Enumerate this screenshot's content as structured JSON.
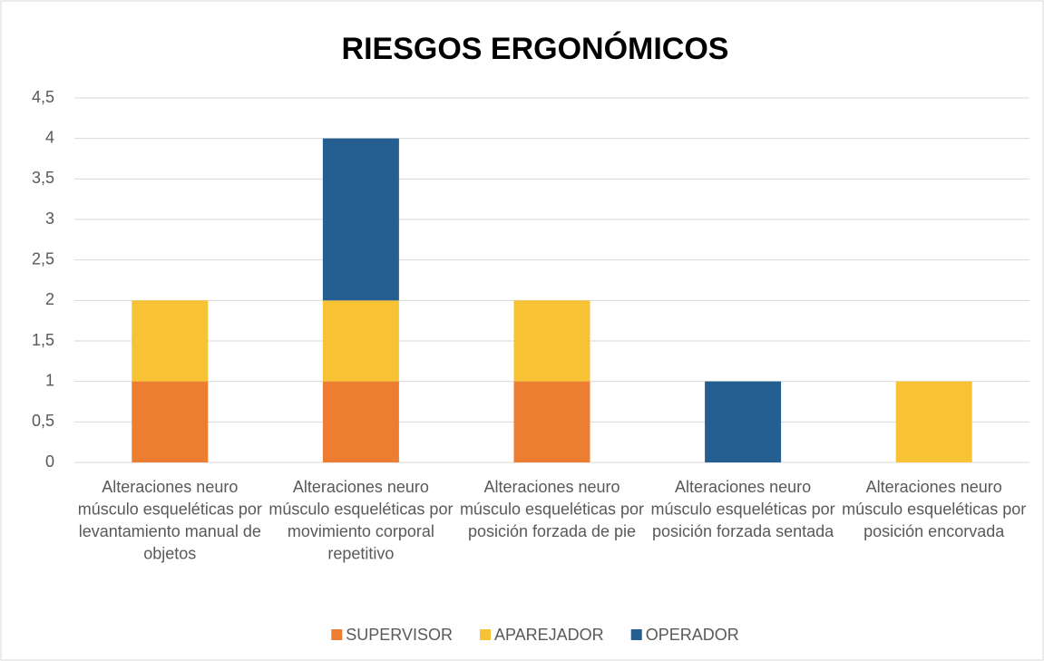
{
  "chart_data": {
    "type": "stacked_bar",
    "title": "RIESGOS ERGONÓMICOS",
    "categories": [
      "Alteraciones neuro músculo esqueléticas por levantamiento manual de objetos",
      "Alteraciones neuro músculo esqueléticas por movimiento corporal repetitivo",
      "Alteraciones neuro músculo esqueléticas por posición forzada de pie",
      "Alteraciones neuro músculo esqueléticas por posición forzada sentada",
      "Alteraciones neuro músculo esqueléticas por posición encorvada"
    ],
    "series": [
      {
        "name": "SUPERVISOR",
        "color": "#ed7d31",
        "values": [
          1,
          1,
          1,
          0,
          0
        ]
      },
      {
        "name": "APAREJADOR",
        "color": "#f7c233",
        "values": [
          1,
          1,
          1,
          0,
          1
        ]
      },
      {
        "name": "OPERADOR",
        "color": "#255e91",
        "values": [
          0,
          2,
          0,
          1,
          0
        ]
      }
    ],
    "ylim": [
      0,
      4.5
    ],
    "yticks": [
      0,
      {
        "value": 0.5,
        "label": "0,5"
      },
      1,
      {
        "value": 1.5,
        "label": "1,5"
      },
      2,
      {
        "value": 2.5,
        "label": "2,5"
      },
      3,
      {
        "value": 3.5,
        "label": "3,5"
      },
      4,
      {
        "value": 4.5,
        "label": "4,5"
      }
    ],
    "grid": true,
    "legend": "bottom"
  }
}
